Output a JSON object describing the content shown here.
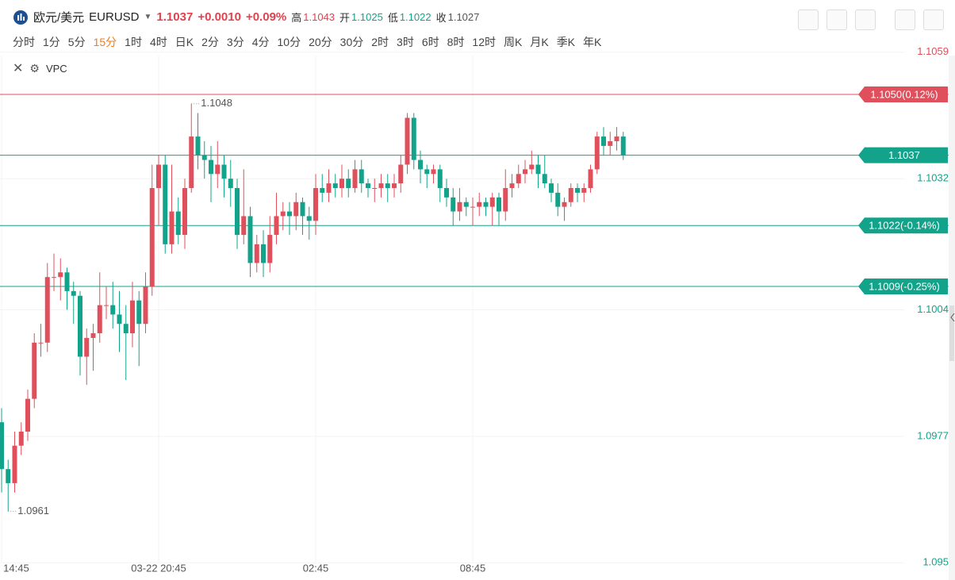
{
  "header": {
    "symbol": "欧元/美元",
    "code": "EURUSD",
    "price": "1.1037",
    "change": "+0.0010",
    "change_pct": "+0.09%",
    "high_label": "高",
    "high": "1.1043",
    "open_label": "开",
    "open": "1.1025",
    "low_label": "低",
    "low": "1.1022",
    "close_label": "收",
    "close": "1.1027"
  },
  "periods": {
    "items": [
      "分时",
      "1分",
      "5分",
      "15分",
      "1时",
      "4时",
      "日K",
      "2分",
      "3分",
      "4分",
      "10分",
      "20分",
      "30分",
      "2时",
      "3时",
      "6时",
      "8时",
      "12时",
      "周K",
      "月K",
      "季K",
      "年K"
    ],
    "active": "15分"
  },
  "indicator": "VPC",
  "chart_data": {
    "type": "candlestick",
    "up_color": "#e04f5c",
    "down_color": "#12a38a",
    "categories": [
      "03-22 14:45",
      null,
      null,
      null,
      null,
      null,
      null,
      null,
      null,
      null,
      null,
      null,
      null,
      null,
      null,
      null,
      null,
      null,
      null,
      null,
      null,
      null,
      null,
      null,
      "03-22 20:45",
      null,
      null,
      null,
      null,
      null,
      null,
      null,
      null,
      null,
      null,
      null,
      null,
      null,
      null,
      null,
      null,
      null,
      null,
      null,
      null,
      null,
      null,
      null,
      "02:45",
      null,
      null,
      null,
      null,
      null,
      null,
      null,
      null,
      null,
      null,
      null,
      null,
      null,
      null,
      null,
      null,
      null,
      null,
      null,
      null,
      null,
      null,
      null,
      "08:45",
      null,
      null,
      null,
      null,
      null,
      null,
      null,
      null,
      null,
      null,
      null,
      null,
      null,
      null,
      null,
      null,
      null,
      null,
      null,
      null,
      null,
      null,
      null
    ],
    "open": [
      1.098,
      1.097,
      1.0967,
      1.0975,
      1.0978,
      1.0985,
      1.0997,
      1.0997,
      1.1011,
      1.1011,
      1.1012,
      1.1008,
      1.1007,
      1.0994,
      1.0998,
      1.0999,
      1.1005,
      1.1005,
      1.1003,
      1.1001,
      1.0999,
      1.1006,
      1.1001,
      1.1009,
      1.103,
      1.1035,
      1.1018,
      1.1025,
      1.102,
      1.103,
      1.1041,
      1.1037,
      1.1036,
      1.1033,
      1.1035,
      1.1032,
      1.103,
      1.102,
      1.1024,
      1.1014,
      1.1018,
      1.1014,
      1.102,
      1.1024,
      1.1025,
      1.1024,
      1.1027,
      1.1024,
      1.1023,
      1.103,
      1.1029,
      1.1031,
      1.103,
      1.1032,
      1.103,
      1.1034,
      1.1031,
      1.103,
      1.103,
      1.1031,
      1.103,
      1.1031,
      1.1035,
      1.1045,
      1.1036,
      1.1034,
      1.1033,
      1.1034,
      1.103,
      1.1028,
      1.1025,
      1.1027,
      1.1026,
      1.1026,
      1.1027,
      1.1026,
      1.1028,
      1.1025,
      1.103,
      1.1031,
      1.1033,
      1.1034,
      1.1035,
      1.1033,
      1.1031,
      1.1029,
      1.1026,
      1.1027,
      1.103,
      1.1029,
      1.103,
      1.1034,
      1.1041,
      1.1039,
      1.104,
      1.1041
    ],
    "close": [
      1.097,
      1.0967,
      1.0975,
      1.0978,
      1.0985,
      1.0997,
      1.0997,
      1.1011,
      1.1011,
      1.1012,
      1.1008,
      1.1007,
      1.0994,
      1.0998,
      1.0999,
      1.1005,
      1.1005,
      1.1003,
      1.1001,
      1.0999,
      1.1006,
      1.1001,
      1.1009,
      1.103,
      1.1035,
      1.1018,
      1.1025,
      1.102,
      1.103,
      1.1041,
      1.1037,
      1.1036,
      1.1033,
      1.1035,
      1.1032,
      1.103,
      1.102,
      1.1024,
      1.1014,
      1.1018,
      1.1014,
      1.102,
      1.1024,
      1.1025,
      1.1024,
      1.1027,
      1.1024,
      1.1023,
      1.103,
      1.1029,
      1.1031,
      1.103,
      1.1032,
      1.103,
      1.1034,
      1.1031,
      1.103,
      1.103,
      1.1031,
      1.103,
      1.1031,
      1.1035,
      1.1045,
      1.1036,
      1.1034,
      1.1033,
      1.1034,
      1.103,
      1.1028,
      1.1025,
      1.1027,
      1.1026,
      1.1026,
      1.1027,
      1.1026,
      1.1028,
      1.1025,
      1.103,
      1.1031,
      1.1033,
      1.1034,
      1.1035,
      1.1033,
      1.1031,
      1.1029,
      1.1026,
      1.1027,
      1.103,
      1.1029,
      1.103,
      1.1034,
      1.1041,
      1.1039,
      1.104,
      1.1041,
      1.1037
    ],
    "high": [
      1.0983,
      1.0972,
      1.0978,
      1.098,
      1.0987,
      1.0999,
      1.1001,
      1.1014,
      1.1016,
      1.1015,
      1.1013,
      1.101,
      1.1008,
      1.1,
      1.1001,
      1.1012,
      1.1009,
      1.101,
      1.1008,
      1.1005,
      1.101,
      1.1008,
      1.1012,
      1.1035,
      1.1037,
      1.1037,
      1.1035,
      1.1028,
      1.1032,
      1.1048,
      1.1046,
      1.104,
      1.1039,
      1.104,
      1.1037,
      1.1036,
      1.1032,
      1.1034,
      1.1026,
      1.102,
      1.1021,
      1.1024,
      1.1029,
      1.1027,
      1.1027,
      1.1029,
      1.1028,
      1.1026,
      1.1033,
      1.1033,
      1.1034,
      1.1033,
      1.1035,
      1.1034,
      1.1036,
      1.1036,
      1.1032,
      1.1032,
      1.1033,
      1.1033,
      1.1033,
      1.1037,
      1.1046,
      1.1046,
      1.1038,
      1.1035,
      1.1035,
      1.1035,
      1.1032,
      1.103,
      1.103,
      1.1028,
      1.1028,
      1.1029,
      1.1028,
      1.1029,
      1.1029,
      1.1034,
      1.1033,
      1.1035,
      1.1036,
      1.1038,
      1.1037,
      1.1037,
      1.1032,
      1.1031,
      1.1028,
      1.1031,
      1.1031,
      1.1031,
      1.1035,
      1.1042,
      1.1043,
      1.1042,
      1.1043,
      1.1042
    ],
    "low": [
      1.0965,
      1.0961,
      1.0965,
      1.0973,
      1.0976,
      1.0983,
      1.0994,
      1.0995,
      1.1008,
      1.1006,
      1.1004,
      1.1001,
      1.099,
      1.0988,
      1.0991,
      1.0997,
      1.1002,
      1.1,
      1.0995,
      1.0989,
      1.0996,
      1.0992,
      1.0999,
      1.1007,
      1.1022,
      1.1016,
      1.1016,
      1.1018,
      1.1017,
      1.1029,
      1.1034,
      1.1032,
      1.1027,
      1.103,
      1.1028,
      1.1026,
      1.1017,
      1.1018,
      1.1011,
      1.1012,
      1.1011,
      1.1012,
      1.1018,
      1.1021,
      1.102,
      1.1021,
      1.102,
      1.1019,
      1.102,
      1.1027,
      1.1027,
      1.1028,
      1.1028,
      1.1028,
      1.1029,
      1.1029,
      1.1028,
      1.1027,
      1.1028,
      1.1027,
      1.1028,
      1.1029,
      1.1033,
      1.1034,
      1.1031,
      1.103,
      1.1031,
      1.1027,
      1.1026,
      1.1022,
      1.1023,
      1.1024,
      1.1022,
      1.1024,
      1.1024,
      1.1022,
      1.1022,
      1.1023,
      1.1028,
      1.103,
      1.1031,
      1.1033,
      1.103,
      1.103,
      1.1027,
      1.1024,
      1.1023,
      1.1026,
      1.1027,
      1.1027,
      1.1029,
      1.1033,
      1.1037,
      1.1037,
      1.1038,
      1.1036
    ],
    "ylim": [
      1.0947,
      1.1061
    ],
    "yticks": [
      1.1059,
      1.1032,
      1.1004,
      1.0977,
      1.095
    ],
    "price_lines": [
      {
        "value": 1.105,
        "label": "1.1050(0.12%)",
        "color": "#e04f5c"
      },
      {
        "value": 1.1037,
        "label": "1.1037",
        "color": "#12a38a"
      },
      {
        "value": 1.1022,
        "label": "1.1022(-0.14%)",
        "color": "#12a38a"
      },
      {
        "value": 1.1009,
        "label": "1.1009(-0.25%)",
        "color": "#12a38a"
      }
    ]
  }
}
